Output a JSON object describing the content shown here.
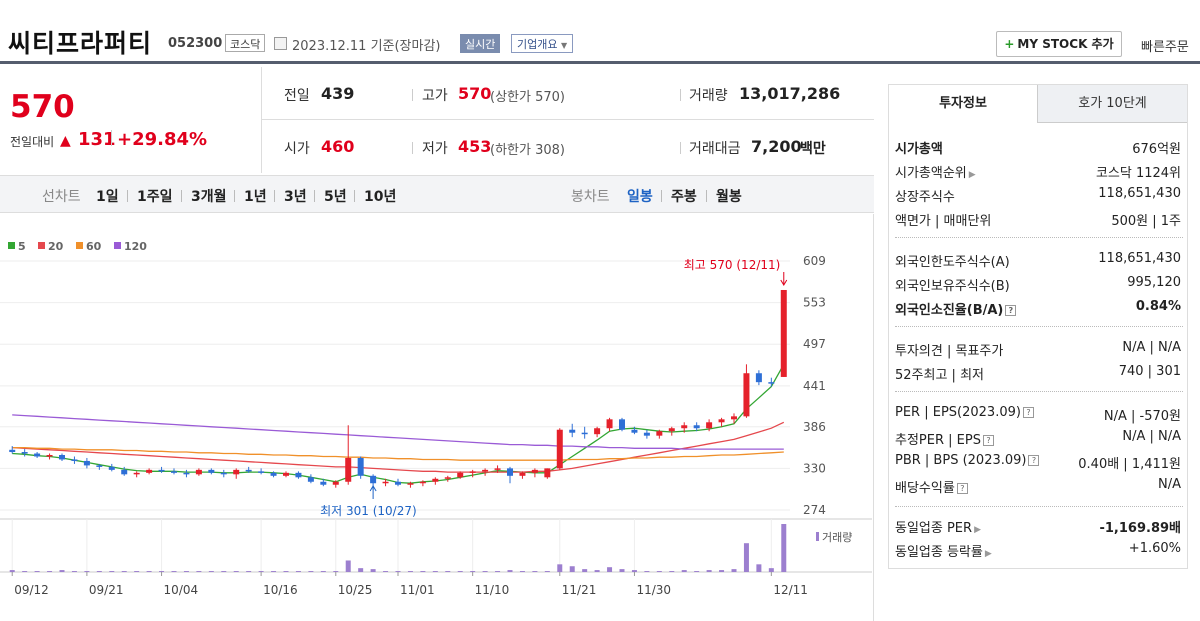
{
  "header": {
    "company_name": "씨티프라퍼티",
    "stock_code": "052300",
    "market": "코스닥",
    "date_text": "2023.12.11  기준(장마감)",
    "realtime_label": "실시간",
    "overview_label": "기업개요",
    "mystock_label": "MY STOCK 추가",
    "quick_order_label": "빠른주문"
  },
  "price": {
    "current": "570",
    "diff_label": "전일대비",
    "diff_value": "131",
    "pct_value": "+29.84%"
  },
  "stats": {
    "prev_label": "전일",
    "prev_value": "439",
    "high_label": "고가",
    "high_value": "570",
    "high_limit": "(상한가 570)",
    "volume_label": "거래량",
    "volume_value": "13,017,286",
    "open_label": "시가",
    "open_value": "460",
    "low_label": "저가",
    "low_value": "453",
    "low_limit": "(하한가 308)",
    "amount_label": "거래대금",
    "amount_value": "7,200",
    "amount_unit": "백만"
  },
  "period_bar": {
    "line_label": "선차트",
    "line_periods": [
      "1일",
      "1주일",
      "3개월",
      "1년",
      "3년",
      "5년",
      "10년"
    ],
    "candle_label": "봉차트",
    "candle_periods": [
      "일봉",
      "주봉",
      "월봉"
    ],
    "active_candle": "일봉"
  },
  "chart_data": {
    "type": "candlestick",
    "legend": [
      {
        "name": "5",
        "color": "#33a633"
      },
      {
        "name": "20",
        "color": "#e5484d"
      },
      {
        "name": "60",
        "color": "#f0902a"
      },
      {
        "name": "120",
        "color": "#9a5bd6"
      }
    ],
    "y_ticks": [
      "609",
      "553",
      "497",
      "441",
      "386",
      "330",
      "274"
    ],
    "ylim": [
      274,
      609
    ],
    "x_ticks": [
      "09/12",
      "09/21",
      "10/04",
      "10/16",
      "10/25",
      "11/01",
      "11/10",
      "11/21",
      "11/30",
      "12/11"
    ],
    "annotation_high": "최고 570 (12/11)",
    "annotation_low": "최저 301 (10/27)",
    "volume_label": "거래량",
    "candles": [
      [
        355,
        360,
        350,
        352
      ],
      [
        352,
        356,
        346,
        350
      ],
      [
        350,
        352,
        344,
        346
      ],
      [
        346,
        350,
        342,
        348
      ],
      [
        348,
        350,
        340,
        342
      ],
      [
        342,
        346,
        336,
        340
      ],
      [
        340,
        344,
        330,
        334
      ],
      [
        334,
        336,
        328,
        332
      ],
      [
        332,
        336,
        326,
        328
      ],
      [
        328,
        332,
        320,
        322
      ],
      [
        322,
        326,
        318,
        324
      ],
      [
        324,
        330,
        322,
        328
      ],
      [
        328,
        332,
        324,
        326
      ],
      [
        326,
        330,
        322,
        324
      ],
      [
        324,
        328,
        318,
        322
      ],
      [
        322,
        330,
        320,
        328
      ],
      [
        328,
        330,
        322,
        324
      ],
      [
        324,
        328,
        318,
        322
      ],
      [
        322,
        330,
        316,
        328
      ],
      [
        328,
        332,
        324,
        326
      ],
      [
        326,
        330,
        322,
        324
      ],
      [
        324,
        326,
        318,
        320
      ],
      [
        320,
        326,
        318,
        324
      ],
      [
        324,
        326,
        316,
        318
      ],
      [
        318,
        322,
        310,
        312
      ],
      [
        312,
        316,
        306,
        308
      ],
      [
        308,
        314,
        304,
        312
      ],
      [
        312,
        388,
        308,
        344
      ],
      [
        344,
        346,
        316,
        320
      ],
      [
        320,
        322,
        301,
        310
      ],
      [
        310,
        316,
        306,
        312
      ],
      [
        312,
        316,
        306,
        308
      ],
      [
        308,
        312,
        304,
        310
      ],
      [
        310,
        314,
        306,
        312
      ],
      [
        312,
        318,
        308,
        316
      ],
      [
        316,
        320,
        312,
        318
      ],
      [
        318,
        326,
        316,
        324
      ],
      [
        324,
        328,
        318,
        326
      ],
      [
        326,
        330,
        320,
        328
      ],
      [
        328,
        334,
        324,
        330
      ],
      [
        330,
        332,
        310,
        320
      ],
      [
        320,
        326,
        316,
        324
      ],
      [
        324,
        330,
        318,
        328
      ],
      [
        318,
        330,
        316,
        330
      ],
      [
        330,
        384,
        328,
        382
      ],
      [
        382,
        390,
        372,
        378
      ],
      [
        378,
        386,
        370,
        376
      ],
      [
        376,
        386,
        372,
        384
      ],
      [
        384,
        398,
        380,
        396
      ],
      [
        396,
        398,
        380,
        382
      ],
      [
        382,
        386,
        376,
        378
      ],
      [
        378,
        382,
        370,
        374
      ],
      [
        374,
        382,
        370,
        380
      ],
      [
        380,
        386,
        374,
        384
      ],
      [
        384,
        392,
        378,
        388
      ],
      [
        388,
        392,
        380,
        384
      ],
      [
        384,
        396,
        380,
        392
      ],
      [
        392,
        398,
        386,
        396
      ],
      [
        396,
        404,
        390,
        400
      ],
      [
        400,
        470,
        398,
        458
      ],
      [
        458,
        462,
        442,
        446
      ],
      [
        446,
        452,
        440,
        444
      ],
      [
        453,
        570,
        453,
        570
      ]
    ],
    "volumes": [
      2,
      1,
      1,
      1,
      2,
      1,
      1,
      1,
      1,
      1,
      1,
      1,
      1,
      1,
      1,
      1,
      1,
      1,
      1,
      1,
      1,
      1,
      1,
      1,
      1,
      1,
      1,
      12,
      4,
      3,
      1,
      1,
      1,
      1,
      1,
      1,
      1,
      1,
      1,
      1,
      2,
      1,
      1,
      1,
      8,
      6,
      3,
      2,
      5,
      3,
      2,
      1,
      1,
      1,
      2,
      1,
      2,
      2,
      3,
      30,
      8,
      4,
      50
    ],
    "ma5": [
      350,
      349,
      347,
      346,
      344,
      341,
      338,
      335,
      332,
      329,
      327,
      326,
      326,
      326,
      325,
      325,
      325,
      324,
      324,
      325,
      325,
      324,
      323,
      321,
      318,
      315,
      312,
      318,
      322,
      318,
      315,
      311,
      310,
      312,
      313,
      315,
      318,
      321,
      324,
      327,
      326,
      325,
      324,
      324,
      335,
      346,
      357,
      368,
      380,
      383,
      384,
      382,
      380,
      379,
      380,
      381,
      383,
      386,
      390,
      410,
      425,
      440,
      470
    ],
    "ma20": [
      358,
      357,
      356,
      355,
      354,
      353,
      352,
      351,
      350,
      349,
      348,
      347,
      346,
      345,
      344,
      343,
      342,
      341,
      340,
      339,
      338,
      337,
      336,
      335,
      334,
      333,
      332,
      332,
      331,
      330,
      329,
      328,
      327,
      326,
      326,
      325,
      325,
      325,
      325,
      325,
      325,
      325,
      326,
      326,
      328,
      330,
      333,
      336,
      339,
      342,
      345,
      348,
      351,
      354,
      357,
      360,
      363,
      366,
      369,
      374,
      379,
      384,
      392
    ],
    "ma60": [
      358,
      358,
      357,
      357,
      356,
      356,
      355,
      355,
      355,
      354,
      354,
      353,
      353,
      352,
      352,
      351,
      351,
      350,
      350,
      349,
      349,
      348,
      348,
      347,
      347,
      346,
      346,
      345,
      345,
      344,
      344,
      343,
      343,
      342,
      342,
      342,
      341,
      341,
      341,
      341,
      341,
      341,
      341,
      341,
      341,
      342,
      342,
      342,
      343,
      343,
      344,
      344,
      345,
      345,
      346,
      346,
      347,
      348,
      348,
      349,
      350,
      351,
      352
    ],
    "ma120": [
      402,
      401,
      400,
      399,
      398,
      397,
      396,
      395,
      394,
      393,
      392,
      391,
      390,
      389,
      388,
      387,
      386,
      385,
      384,
      383,
      382,
      381,
      380,
      379,
      378,
      377,
      376,
      375,
      374,
      373,
      372,
      371,
      370,
      369,
      368,
      367,
      366,
      365,
      364,
      363,
      362,
      362,
      361,
      361,
      360,
      360,
      359,
      359,
      358,
      358,
      357,
      357,
      357,
      357,
      356,
      356,
      356,
      356,
      356,
      356,
      356,
      356,
      356
    ]
  },
  "right_panel": {
    "tab_invest": "투자정보",
    "tab_hoga": "호가 10단계",
    "market_cap_label": "시가총액",
    "market_cap_value": "676억원",
    "rank_label": "시가총액순위",
    "rank_value": "코스닥 1124위",
    "shares_label": "상장주식수",
    "shares_value": "118,651,430",
    "par_label": "액면가 | 매매단위",
    "par_value": "500원 | 1주",
    "foreign_limit_label": "외국인한도주식수(A)",
    "foreign_limit_value": "118,651,430",
    "foreign_hold_label": "외국인보유주식수(B)",
    "foreign_hold_value": "995,120",
    "foreign_rate_label": "외국인소진율(B/A)",
    "foreign_rate_value": "0.84%",
    "opinion_label": "투자의견 | 목표주가",
    "opinion_value": "N/A | N/A",
    "w52_label": "52주최고 | 최저",
    "w52_value": "740 | 301",
    "per_label": "PER | EPS(2023.09)",
    "per_value": "N/A | -570원",
    "est_per_label": "추정PER | EPS",
    "est_per_value": "N/A | N/A",
    "pbr_label": "PBR | BPS (2023.09)",
    "pbr_value": "0.40배 | 1,411원",
    "div_label": "배당수익률",
    "div_value": "N/A",
    "industry_per_label": "동일업종 PER",
    "industry_per_value": "-1,169.89배",
    "industry_rate_label": "동일업종 등락률",
    "industry_rate_value": "+1.60%"
  }
}
